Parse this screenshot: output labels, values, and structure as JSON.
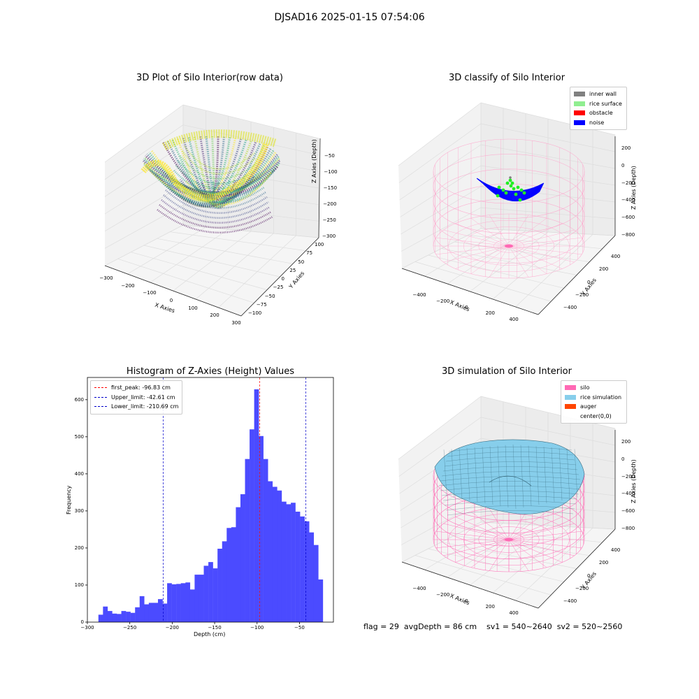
{
  "figure": {
    "title": "DJSAD16 2025-01-15 07:54:06"
  },
  "status": {
    "text": "flag = 29  avgDepth = 86 cm    sv1 = 540~2640  sv2 = 520~2560"
  },
  "colors": {
    "silo_pink": "#f472b6",
    "rice_blue": "#87ceeb",
    "hist_blue": "#4b4bff",
    "noise_blue": "#0000ff",
    "green": "#22ee22"
  },
  "chart_data": [
    {
      "type": "scatter",
      "title": "3D Plot of Silo Interior(row data)",
      "xlabel": "X Axies",
      "ylabel": "Y Axies",
      "zlabel": "Z Axies (Depth)",
      "xticks": [
        "−300",
        "−200",
        "−100",
        "0",
        "100",
        "200",
        "300"
      ],
      "yticks": [
        "100",
        "75",
        "50",
        "25",
        "0",
        "−25",
        "−50",
        "−75",
        "−100"
      ],
      "zticks": [
        "−50",
        "−100",
        "−150",
        "−200",
        "−250",
        "−300"
      ],
      "xlim": [
        -300,
        300
      ],
      "ylim": [
        -100,
        100
      ],
      "zlim": [
        -300,
        -50
      ],
      "colormap": "viridis"
    },
    {
      "type": "scatter",
      "title": "3D classify of Silo Interior",
      "xlabel": "X Axies",
      "ylabel": "Y Axies",
      "zlabel": "Z Axies (Depth)",
      "xticks": [
        "−400",
        "−200",
        "0",
        "200",
        "400"
      ],
      "yticks": [
        "400",
        "200",
        "0",
        "−200",
        "−400"
      ],
      "zticks": [
        "200",
        "0",
        "−200",
        "−400",
        "−600",
        "−800"
      ],
      "legend": [
        {
          "label": "inner wall",
          "color": "#808080"
        },
        {
          "label": "rice surface",
          "color": "#90ee90"
        },
        {
          "label": "obstacle",
          "color": "#ff0000"
        },
        {
          "label": "noise",
          "color": "#0000ff"
        }
      ],
      "legend_position": "upper right"
    },
    {
      "type": "bar",
      "title": "Histogram of Z-Axies (Height) Values",
      "xlabel": "Depth (cm)",
      "ylabel": "Frequency",
      "xlim": [
        -300,
        -10
      ],
      "ylim": [
        0,
        660
      ],
      "xticks": [
        "−300",
        "−250",
        "−200",
        "−150",
        "−100",
        "−50"
      ],
      "xtick_values": [
        -300,
        -250,
        -200,
        -150,
        -100,
        -50
      ],
      "yticks": [
        "0",
        "100",
        "200",
        "300",
        "400",
        "500",
        "600"
      ],
      "ytick_values": [
        0,
        100,
        200,
        300,
        400,
        500,
        600
      ],
      "bin_start": -287,
      "bin_width": 5.4,
      "values": [
        20,
        42,
        30,
        23,
        22,
        30,
        28,
        25,
        40,
        70,
        48,
        52,
        52,
        62,
        50,
        105,
        102,
        103,
        105,
        107,
        88,
        128,
        128,
        152,
        162,
        145,
        198,
        218,
        254,
        256,
        310,
        345,
        440,
        520,
        628,
        502,
        440,
        380,
        365,
        355,
        325,
        318,
        322,
        298,
        285,
        272,
        242,
        208,
        115
      ],
      "vlines": [
        {
          "label": "first_peak: -96.83 cm",
          "x": -96.83,
          "color": "#ff0000"
        },
        {
          "label": "Upper_limit: -42.61 cm",
          "x": -42.61,
          "color": "#0000cc"
        },
        {
          "label": "Lower_limit: -210.69 cm",
          "x": -210.69,
          "color": "#0000cc"
        }
      ],
      "legend_position": "upper left"
    },
    {
      "type": "area",
      "title": "3D simulation of Silo Interior",
      "xlabel": "X Axies",
      "ylabel": "Y Axies",
      "zlabel": "Z Axies (Depth)",
      "xticks": [
        "−400",
        "−200",
        "0",
        "200",
        "400"
      ],
      "yticks": [
        "400",
        "200",
        "0",
        "−200",
        "−400"
      ],
      "zticks": [
        "200",
        "0",
        "−200",
        "−400",
        "−600",
        "−800"
      ],
      "legend": [
        {
          "label": "silo",
          "color": "#ff69b4"
        },
        {
          "label": "rice simulation",
          "color": "#87ceeb"
        },
        {
          "label": "auger",
          "color": "#ff4500"
        },
        {
          "label": "center(0,0)",
          "color": ""
        }
      ],
      "legend_position": "upper right"
    }
  ]
}
